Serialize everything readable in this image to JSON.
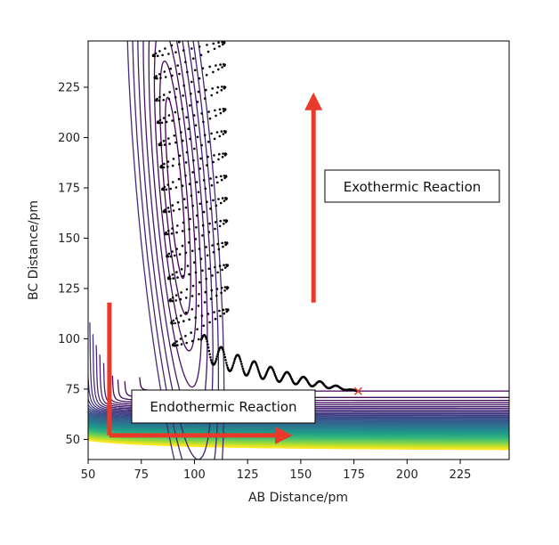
{
  "chart_data": {
    "type": "contour",
    "title": "",
    "xlabel": "AB Distance/pm",
    "ylabel": "BC Distance/pm",
    "xlim": [
      50,
      248
    ],
    "ylim": [
      40,
      248
    ],
    "x_ticks": [
      50,
      75,
      100,
      125,
      150,
      175,
      200,
      225
    ],
    "y_ticks": [
      50,
      75,
      100,
      125,
      150,
      175,
      200,
      225
    ],
    "colormap": "viridis",
    "grid": false,
    "legend": "none",
    "trajectory": {
      "color": "#000000",
      "end_marker": {
        "symbol": "x",
        "color": "#e8392a",
        "x": 177,
        "y": 74
      }
    },
    "annotations": [
      {
        "text": "Exothermic Reaction",
        "x": 168,
        "y": 178
      },
      {
        "text": "Endothermic Reaction",
        "x": 108,
        "y": 66
      }
    ],
    "arrows": [
      {
        "name": "exothermic-arrow",
        "from": [
          156,
          118
        ],
        "to": [
          156,
          218
        ],
        "color": "#e8392a"
      },
      {
        "name": "endothermic-arrow-vertical",
        "from": [
          60,
          118
        ],
        "to": [
          60,
          52
        ],
        "color": "#e8392a"
      },
      {
        "name": "endothermic-arrow-horizontal",
        "from": [
          60,
          52
        ],
        "to": [
          142,
          52
        ],
        "color": "#e8392a"
      }
    ]
  }
}
